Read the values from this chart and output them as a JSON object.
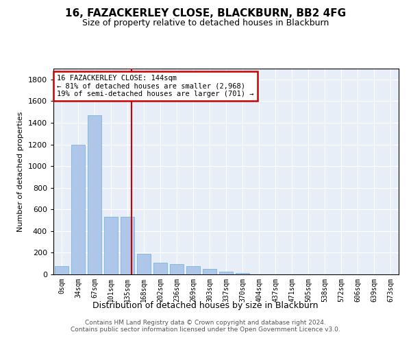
{
  "title": "16, FAZACKERLEY CLOSE, BLACKBURN, BB2 4FG",
  "subtitle": "Size of property relative to detached houses in Blackburn",
  "xlabel": "Distribution of detached houses by size in Blackburn",
  "ylabel": "Number of detached properties",
  "bar_color": "#aec6e8",
  "bar_edge_color": "#6aaed6",
  "background_color": "#e8eef8",
  "grid_color": "#ffffff",
  "categories": [
    "0sqm",
    "34sqm",
    "67sqm",
    "101sqm",
    "135sqm",
    "168sqm",
    "202sqm",
    "236sqm",
    "269sqm",
    "303sqm",
    "337sqm",
    "370sqm",
    "404sqm",
    "437sqm",
    "471sqm",
    "505sqm",
    "538sqm",
    "572sqm",
    "606sqm",
    "639sqm",
    "673sqm"
  ],
  "values": [
    75,
    1195,
    1470,
    530,
    530,
    190,
    110,
    95,
    75,
    50,
    25,
    15,
    0,
    0,
    0,
    0,
    0,
    0,
    0,
    0,
    0
  ],
  "ylim": [
    0,
    1900
  ],
  "yticks": [
    0,
    200,
    400,
    600,
    800,
    1000,
    1200,
    1400,
    1600,
    1800
  ],
  "vline_color": "#cc0000",
  "vline_x": 4.27,
  "annotation_text": "16 FAZACKERLEY CLOSE: 144sqm\n← 81% of detached houses are smaller (2,968)\n19% of semi-detached houses are larger (701) →",
  "ann_box_facecolor": "#ffffff",
  "ann_box_edgecolor": "#cc0000",
  "footer_line1": "Contains HM Land Registry data © Crown copyright and database right 2024.",
  "footer_line2": "Contains public sector information licensed under the Open Government Licence v3.0."
}
